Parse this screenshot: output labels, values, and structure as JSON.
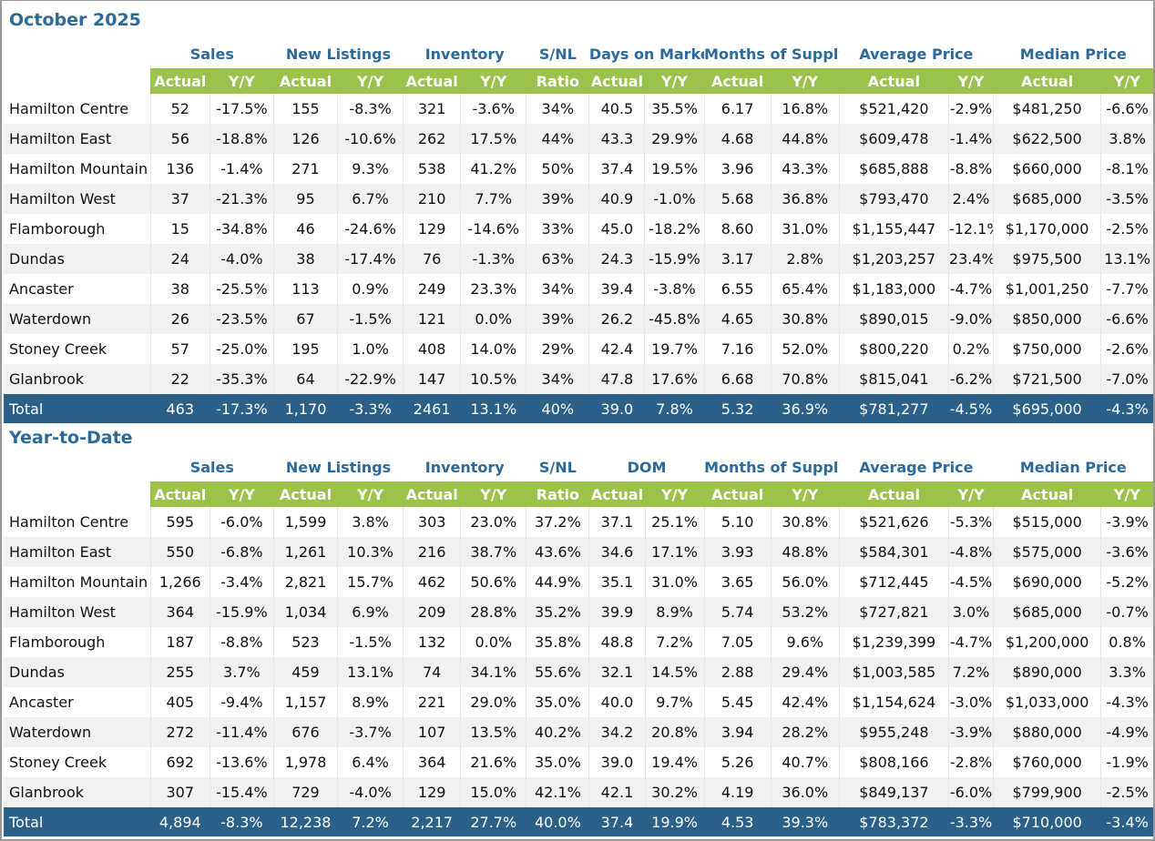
{
  "sections": [
    {
      "title": "October 2025",
      "groups": [
        "Sales",
        "New Listings",
        "Inventory",
        "S/NL",
        "Days on Market",
        "Months of Supply",
        "Average Price",
        "Median Price"
      ],
      "subheaders": [
        "Actual",
        "Y/Y",
        "Actual",
        "Y/Y",
        "Actual",
        "Y/Y",
        "Ratio",
        "Actual",
        "Y/Y",
        "Actual",
        "Y/Y",
        "Actual",
        "Y/Y",
        "Actual",
        "Y/Y"
      ],
      "rows": [
        [
          "Hamilton Centre",
          "52",
          "-17.5%",
          "155",
          "-8.3%",
          "321",
          "-3.6%",
          "34%",
          "40.5",
          "35.5%",
          "6.17",
          "16.8%",
          "$521,420",
          "-2.9%",
          "$481,250",
          "-6.6%"
        ],
        [
          "Hamilton East",
          "56",
          "-18.8%",
          "126",
          "-10.6%",
          "262",
          "17.5%",
          "44%",
          "43.3",
          "29.9%",
          "4.68",
          "44.8%",
          "$609,478",
          "-1.4%",
          "$622,500",
          "3.8%"
        ],
        [
          "Hamilton Mountain",
          "136",
          "-1.4%",
          "271",
          "9.3%",
          "538",
          "41.2%",
          "50%",
          "37.4",
          "19.5%",
          "3.96",
          "43.3%",
          "$685,888",
          "-8.8%",
          "$660,000",
          "-8.1%"
        ],
        [
          "Hamilton West",
          "37",
          "-21.3%",
          "95",
          "6.7%",
          "210",
          "7.7%",
          "39%",
          "40.9",
          "-1.0%",
          "5.68",
          "36.8%",
          "$793,470",
          "2.4%",
          "$685,000",
          "-3.5%"
        ],
        [
          "Flamborough",
          "15",
          "-34.8%",
          "46",
          "-24.6%",
          "129",
          "-14.6%",
          "33%",
          "45.0",
          "-18.2%",
          "8.60",
          "31.0%",
          "$1,155,447",
          "-12.1%",
          "$1,170,000",
          "-2.5%"
        ],
        [
          "Dundas",
          "24",
          "-4.0%",
          "38",
          "-17.4%",
          "76",
          "-1.3%",
          "63%",
          "24.3",
          "-15.9%",
          "3.17",
          "2.8%",
          "$1,203,257",
          "23.4%",
          "$975,500",
          "13.1%"
        ],
        [
          "Ancaster",
          "38",
          "-25.5%",
          "113",
          "0.9%",
          "249",
          "23.3%",
          "34%",
          "39.4",
          "-3.8%",
          "6.55",
          "65.4%",
          "$1,183,000",
          "-4.7%",
          "$1,001,250",
          "-7.7%"
        ],
        [
          "Waterdown",
          "26",
          "-23.5%",
          "67",
          "-1.5%",
          "121",
          "0.0%",
          "39%",
          "26.2",
          "-45.8%",
          "4.65",
          "30.8%",
          "$890,015",
          "-9.0%",
          "$850,000",
          "-6.6%"
        ],
        [
          "Stoney Creek",
          "57",
          "-25.0%",
          "195",
          "1.0%",
          "408",
          "14.0%",
          "29%",
          "42.4",
          "19.7%",
          "7.16",
          "52.0%",
          "$800,220",
          "0.2%",
          "$750,000",
          "-2.6%"
        ],
        [
          "Glanbrook",
          "22",
          "-35.3%",
          "64",
          "-22.9%",
          "147",
          "10.5%",
          "34%",
          "47.8",
          "17.6%",
          "6.68",
          "70.8%",
          "$815,041",
          "-6.2%",
          "$721,500",
          "-7.0%"
        ]
      ],
      "total": [
        "Total",
        "463",
        "-17.3%",
        "1,170",
        "-3.3%",
        "2461",
        "13.1%",
        "40%",
        "39.0",
        "7.8%",
        "5.32",
        "36.9%",
        "$781,277",
        "-4.5%",
        "$695,000",
        "-4.3%"
      ]
    },
    {
      "title": "Year-to-Date",
      "groups": [
        "Sales",
        "New Listings",
        "Inventory",
        "S/NL",
        "DOM",
        "Months of Supply",
        "Average Price",
        "Median Price"
      ],
      "subheaders": [
        "Actual",
        "Y/Y",
        "Actual",
        "Y/Y",
        "Actual",
        "Y/Y",
        "Ratio",
        "Actual",
        "Y/Y",
        "Actual",
        "Y/Y",
        "Actual",
        "Y/Y",
        "Actual",
        "Y/Y"
      ],
      "rows": [
        [
          "Hamilton Centre",
          "595",
          "-6.0%",
          "1,599",
          "3.8%",
          "303",
          "23.0%",
          "37.2%",
          "37.1",
          "25.1%",
          "5.10",
          "30.8%",
          "$521,626",
          "-5.3%",
          "$515,000",
          "-3.9%"
        ],
        [
          "Hamilton East",
          "550",
          "-6.8%",
          "1,261",
          "10.3%",
          "216",
          "38.7%",
          "43.6%",
          "34.6",
          "17.1%",
          "3.93",
          "48.8%",
          "$584,301",
          "-4.8%",
          "$575,000",
          "-3.6%"
        ],
        [
          "Hamilton Mountain",
          "1,266",
          "-3.4%",
          "2,821",
          "15.7%",
          "462",
          "50.6%",
          "44.9%",
          "35.1",
          "31.0%",
          "3.65",
          "56.0%",
          "$712,445",
          "-4.5%",
          "$690,000",
          "-5.2%"
        ],
        [
          "Hamilton West",
          "364",
          "-15.9%",
          "1,034",
          "6.9%",
          "209",
          "28.8%",
          "35.2%",
          "39.9",
          "8.9%",
          "5.74",
          "53.2%",
          "$727,821",
          "3.0%",
          "$685,000",
          "-0.7%"
        ],
        [
          "Flamborough",
          "187",
          "-8.8%",
          "523",
          "-1.5%",
          "132",
          "0.0%",
          "35.8%",
          "48.8",
          "7.2%",
          "7.05",
          "9.6%",
          "$1,239,399",
          "-4.7%",
          "$1,200,000",
          "0.8%"
        ],
        [
          "Dundas",
          "255",
          "3.7%",
          "459",
          "13.1%",
          "74",
          "34.1%",
          "55.6%",
          "32.1",
          "14.5%",
          "2.88",
          "29.4%",
          "$1,003,585",
          "7.2%",
          "$890,000",
          "3.3%"
        ],
        [
          "Ancaster",
          "405",
          "-9.4%",
          "1,157",
          "8.9%",
          "221",
          "29.0%",
          "35.0%",
          "40.0",
          "9.7%",
          "5.45",
          "42.4%",
          "$1,154,624",
          "-3.0%",
          "$1,033,000",
          "-4.3%"
        ],
        [
          "Waterdown",
          "272",
          "-11.4%",
          "676",
          "-3.7%",
          "107",
          "13.5%",
          "40.2%",
          "34.2",
          "20.8%",
          "3.94",
          "28.2%",
          "$955,248",
          "-3.9%",
          "$880,000",
          "-4.9%"
        ],
        [
          "Stoney Creek",
          "692",
          "-13.6%",
          "1,978",
          "6.4%",
          "364",
          "21.6%",
          "35.0%",
          "39.0",
          "19.4%",
          "5.26",
          "40.7%",
          "$808,166",
          "-2.8%",
          "$760,000",
          "-1.9%"
        ],
        [
          "Glanbrook",
          "307",
          "-15.4%",
          "729",
          "-4.0%",
          "129",
          "15.0%",
          "42.1%",
          "42.1",
          "30.2%",
          "4.19",
          "36.0%",
          "$849,137",
          "-6.0%",
          "$799,900",
          "-2.5%"
        ]
      ],
      "total": [
        "Total",
        "4,894",
        "-8.3%",
        "12,238",
        "7.2%",
        "2,217",
        "27.7%",
        "40.0%",
        "37.4",
        "19.9%",
        "4.53",
        "39.3%",
        "$783,372",
        "-3.3%",
        "$710,000",
        "-3.4%"
      ]
    }
  ]
}
